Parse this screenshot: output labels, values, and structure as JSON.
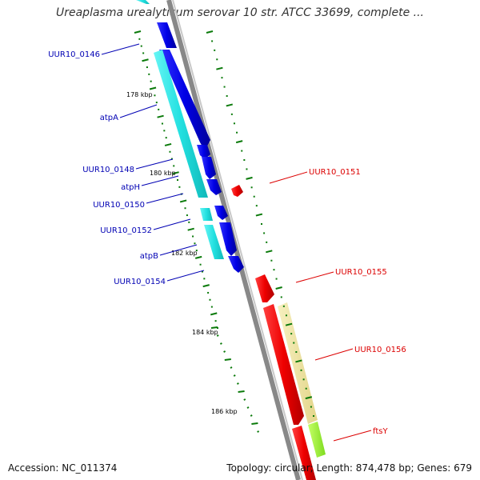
{
  "title": "Ureaplasma urealyticum serovar 10 str. ATCC 33699, complete ...",
  "footer": {
    "accession": "Accession: NC_011374",
    "summary": "Topology: circular; Length: 874,478 bp; Genes: 679"
  },
  "colors": {
    "backbone": "#808080",
    "cds_reverse": "#0000e6",
    "gene_reverse": "#33e6e6",
    "cds_forward": "#ff0000",
    "gene_forward_misc": "#f0e6a0",
    "gene_forward_rna": "#99ff33",
    "tick": "#0a7a0a",
    "label_reverse": "#0000b4",
    "label_forward": "#dc0000"
  },
  "ticks": [
    "178 kbp",
    "180 kbp",
    "182 kbp",
    "184 kbp",
    "186 kbp"
  ],
  "genes_left": [
    {
      "name": "UUR10_0146"
    },
    {
      "name": "atpA"
    },
    {
      "name": "UUR10_0148"
    },
    {
      "name": "atpH"
    },
    {
      "name": "UUR10_0150"
    },
    {
      "name": "UUR10_0152"
    },
    {
      "name": "atpB"
    },
    {
      "name": "UUR10_0154"
    }
  ],
  "genes_right": [
    {
      "name": "UUR10_0151"
    },
    {
      "name": "UUR10_0155"
    },
    {
      "name": "UUR10_0156"
    },
    {
      "name": "ftsY"
    }
  ]
}
